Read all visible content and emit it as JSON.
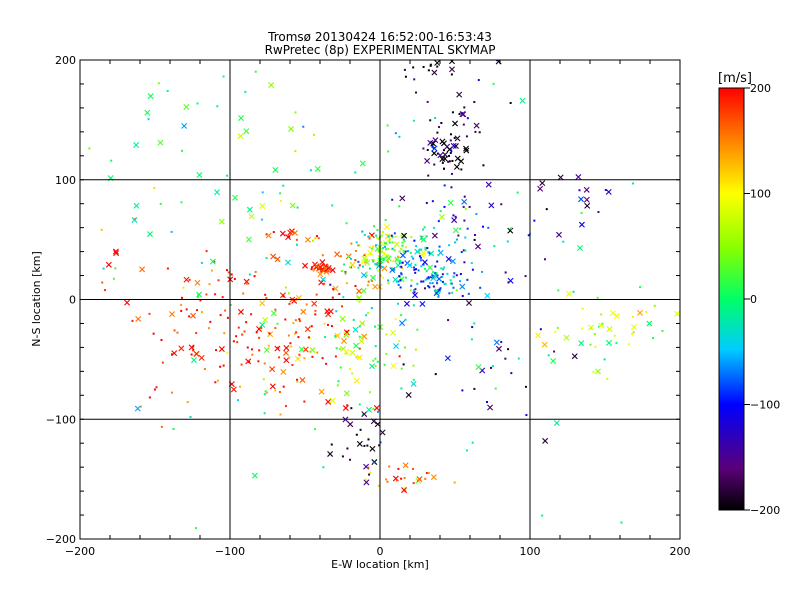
{
  "chart_data": {
    "type": "scatter",
    "title": "Tromsø 20130424 16:52:00-16:53:43",
    "subtitle": "RwPretec (8p) EXPERIMENTAL SKYMAP",
    "xlabel": "E-W location [km]",
    "ylabel": "N-S location [km]",
    "xlim": [
      -200,
      200
    ],
    "ylim": [
      -200,
      200
    ],
    "x_ticks": [
      -200,
      -100,
      0,
      100,
      200
    ],
    "y_ticks": [
      -200,
      -100,
      0,
      100,
      200
    ],
    "x_tick_labels": [
      "−200",
      "−100",
      "0",
      "100",
      "200"
    ],
    "y_tick_labels": [
      "−200",
      "−100",
      "0",
      "100",
      "200"
    ],
    "grid": true,
    "colorbar": {
      "label": "[m/s]",
      "range": [
        -200,
        200
      ],
      "ticks": [
        200,
        100,
        0,
        -100,
        -200
      ],
      "tick_labels": [
        "200",
        "100",
        "0",
        "−100",
        "−200"
      ],
      "placement": "right"
    },
    "clusters": [
      {
        "x": 45,
        "y": 125,
        "sx": 10,
        "sy": 10,
        "v": -190,
        "n": 45,
        "cross": 0.3
      },
      {
        "x": 55,
        "y": 160,
        "sx": 15,
        "sy": 25,
        "v": -170,
        "n": 30,
        "cross": 0.3
      },
      {
        "x": 30,
        "y": 195,
        "sx": 15,
        "sy": 5,
        "v": -190,
        "n": 15,
        "cross": 0.5
      },
      {
        "x": -40,
        "y": 27,
        "sx": 4,
        "sy": 3,
        "v": 200,
        "n": 25,
        "cross": 0.6
      },
      {
        "x": -60,
        "y": 52,
        "sx": 10,
        "sy": 2,
        "v": 190,
        "n": 15,
        "cross": 0.6
      },
      {
        "x": -15,
        "y": 30,
        "sx": 10,
        "sy": 15,
        "v": 150,
        "n": 35,
        "cross": 0.3
      },
      {
        "x": 5,
        "y": 40,
        "sx": 10,
        "sy": 10,
        "v": 60,
        "n": 80,
        "cross": 0.2
      },
      {
        "x": 20,
        "y": 30,
        "sx": 20,
        "sy": 15,
        "v": -40,
        "n": 120,
        "cross": 0.15
      },
      {
        "x": 40,
        "y": 15,
        "sx": 15,
        "sy": 10,
        "v": -90,
        "n": 60,
        "cross": 0.15
      },
      {
        "x": 50,
        "y": 60,
        "sx": 25,
        "sy": 20,
        "v": -120,
        "n": 40,
        "cross": 0.2
      },
      {
        "x": -100,
        "y": -20,
        "sx": 45,
        "sy": 40,
        "v": 190,
        "n": 140,
        "cross": 0.25
      },
      {
        "x": -50,
        "y": -30,
        "sx": 15,
        "sy": 25,
        "v": 180,
        "n": 60,
        "cross": 0.4
      },
      {
        "x": -15,
        "y": -40,
        "sx": 15,
        "sy": 25,
        "v": 40,
        "n": 50,
        "cross": 0.4
      },
      {
        "x": -15,
        "y": -115,
        "sx": 10,
        "sy": 15,
        "v": -180,
        "n": 25,
        "cross": 0.5
      },
      {
        "x": 20,
        "y": -150,
        "sx": 15,
        "sy": 8,
        "v": 150,
        "n": 25,
        "cross": 0.3
      },
      {
        "x": 160,
        "y": -20,
        "sx": 25,
        "sy": 20,
        "v": 70,
        "n": 40,
        "cross": 0.6
      },
      {
        "x": 130,
        "y": 85,
        "sx": 12,
        "sy": 12,
        "v": -150,
        "n": 15,
        "cross": 0.6
      },
      {
        "x": -150,
        "y": 120,
        "sx": 25,
        "sy": 50,
        "v": 10,
        "n": 20,
        "cross": 0.5
      },
      {
        "x": -80,
        "y": 130,
        "sx": 20,
        "sy": 40,
        "v": 30,
        "n": 20,
        "cross": 0.5
      },
      {
        "x": 70,
        "y": -60,
        "sx": 30,
        "sy": 40,
        "v": -150,
        "n": 25,
        "cross": 0.3
      },
      {
        "x": 0,
        "y": 0,
        "sx": 90,
        "sy": 90,
        "v": 0,
        "n": 150,
        "cross": 0.25
      }
    ]
  }
}
